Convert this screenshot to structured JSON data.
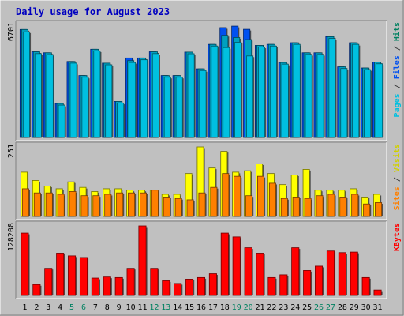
{
  "chart_data": [
    {
      "type": "bar",
      "title": "Daily usage for August 2023",
      "ylabel_max": "6701",
      "legend": [
        {
          "label": "Pages",
          "color": "#00c0e0"
        },
        {
          "label": "/",
          "color": "#404040"
        },
        {
          "label": "Files",
          "color": "#0050f0"
        },
        {
          "label": "/",
          "color": "#404040"
        },
        {
          "label": "Hits",
          "color": "#008060"
        }
      ],
      "ylim": [
        0,
        6701
      ],
      "series": [
        {
          "name": "Hits",
          "color": "#0050f0",
          "values": [
            6450,
            5120,
            5060,
            2030,
            4540,
            3700,
            5270,
            4440,
            2150,
            4750,
            4750,
            5120,
            3700,
            3700,
            5100,
            4100,
            5560,
            6560,
            6650,
            6460,
            5500,
            5560,
            4480,
            5660,
            5060,
            5060,
            6020,
            4220,
            5660,
            4150,
            4500
          ]
        },
        {
          "name": "Files",
          "color": "#00a0c0",
          "values": [
            6450,
            5120,
            5060,
            2030,
            4540,
            3700,
            5270,
            4440,
            2150,
            4590,
            4750,
            5120,
            3700,
            3700,
            5100,
            4100,
            5560,
            6100,
            5970,
            5850,
            5500,
            5560,
            4480,
            5660,
            5060,
            5060,
            6020,
            4220,
            5660,
            4150,
            4500
          ]
        },
        {
          "name": "Pages",
          "color": "#00c0e0",
          "values": [
            6310,
            5010,
            4950,
            1930,
            4440,
            3600,
            5170,
            4340,
            2050,
            4480,
            4640,
            5010,
            3600,
            3600,
            5000,
            4000,
            5460,
            5370,
            5690,
            4870,
            5400,
            5460,
            4380,
            5560,
            4960,
            4960,
            5920,
            4120,
            5560,
            4050,
            4400
          ]
        }
      ]
    },
    {
      "type": "bar",
      "ylabel_max": "251",
      "legend": [
        {
          "label": "Sites",
          "color": "#ff8000"
        },
        {
          "label": "/",
          "color": "#404040"
        },
        {
          "label": "Visits",
          "color": "#d0d000"
        }
      ],
      "ylim": [
        0,
        251
      ],
      "series": [
        {
          "name": "Visits",
          "color": "#ffff00",
          "values": [
            160,
            130,
            110,
            100,
            125,
            105,
            90,
            100,
            100,
            95,
            95,
            95,
            80,
            80,
            155,
            251,
            175,
            235,
            160,
            165,
            190,
            155,
            115,
            150,
            170,
            95,
            95,
            95,
            100,
            70,
            80
          ]
        },
        {
          "name": "Sites",
          "color": "#ff8000",
          "values": [
            100,
            85,
            85,
            80,
            90,
            75,
            75,
            80,
            85,
            85,
            85,
            95,
            70,
            65,
            60,
            85,
            105,
            155,
            145,
            75,
            145,
            120,
            65,
            70,
            65,
            75,
            80,
            70,
            80,
            45,
            50
          ]
        }
      ]
    },
    {
      "type": "bar",
      "ylabel_max": "128208",
      "legend": [
        {
          "label": "KBytes",
          "color": "#ff0000"
        }
      ],
      "ylim": [
        0,
        128208
      ],
      "series": [
        {
          "name": "KBytes",
          "color": "#ff0000",
          "values": [
            115000,
            20000,
            50000,
            78000,
            73000,
            70000,
            32000,
            34000,
            33000,
            50000,
            128208,
            50000,
            27000,
            22000,
            30000,
            33000,
            40000,
            115000,
            108000,
            88000,
            78000,
            33000,
            38000,
            88000,
            46000,
            54000,
            82000,
            79000,
            80000,
            33000,
            10000
          ]
        }
      ]
    }
  ],
  "days": [
    {
      "label": "1",
      "weekend": false
    },
    {
      "label": "2",
      "weekend": false
    },
    {
      "label": "3",
      "weekend": false
    },
    {
      "label": "4",
      "weekend": false
    },
    {
      "label": "5",
      "weekend": true
    },
    {
      "label": "6",
      "weekend": true
    },
    {
      "label": "7",
      "weekend": false
    },
    {
      "label": "8",
      "weekend": false
    },
    {
      "label": "9",
      "weekend": false
    },
    {
      "label": "10",
      "weekend": false
    },
    {
      "label": "11",
      "weekend": false
    },
    {
      "label": "12",
      "weekend": true
    },
    {
      "label": "13",
      "weekend": true
    },
    {
      "label": "14",
      "weekend": false
    },
    {
      "label": "15",
      "weekend": false
    },
    {
      "label": "16",
      "weekend": false
    },
    {
      "label": "17",
      "weekend": false
    },
    {
      "label": "18",
      "weekend": false
    },
    {
      "label": "19",
      "weekend": true
    },
    {
      "label": "20",
      "weekend": true
    },
    {
      "label": "21",
      "weekend": false
    },
    {
      "label": "22",
      "weekend": false
    },
    {
      "label": "23",
      "weekend": false
    },
    {
      "label": "24",
      "weekend": false
    },
    {
      "label": "25",
      "weekend": false
    },
    {
      "label": "26",
      "weekend": true
    },
    {
      "label": "27",
      "weekend": true
    },
    {
      "label": "28",
      "weekend": false
    },
    {
      "label": "29",
      "weekend": false
    },
    {
      "label": "30",
      "weekend": false
    },
    {
      "label": "31",
      "weekend": false
    }
  ],
  "colors": {
    "background": "#c0c0c0",
    "title": "#0000c0",
    "weekday_label": "#000000",
    "weekend_label": "#008060",
    "axis_label": "#000000"
  }
}
